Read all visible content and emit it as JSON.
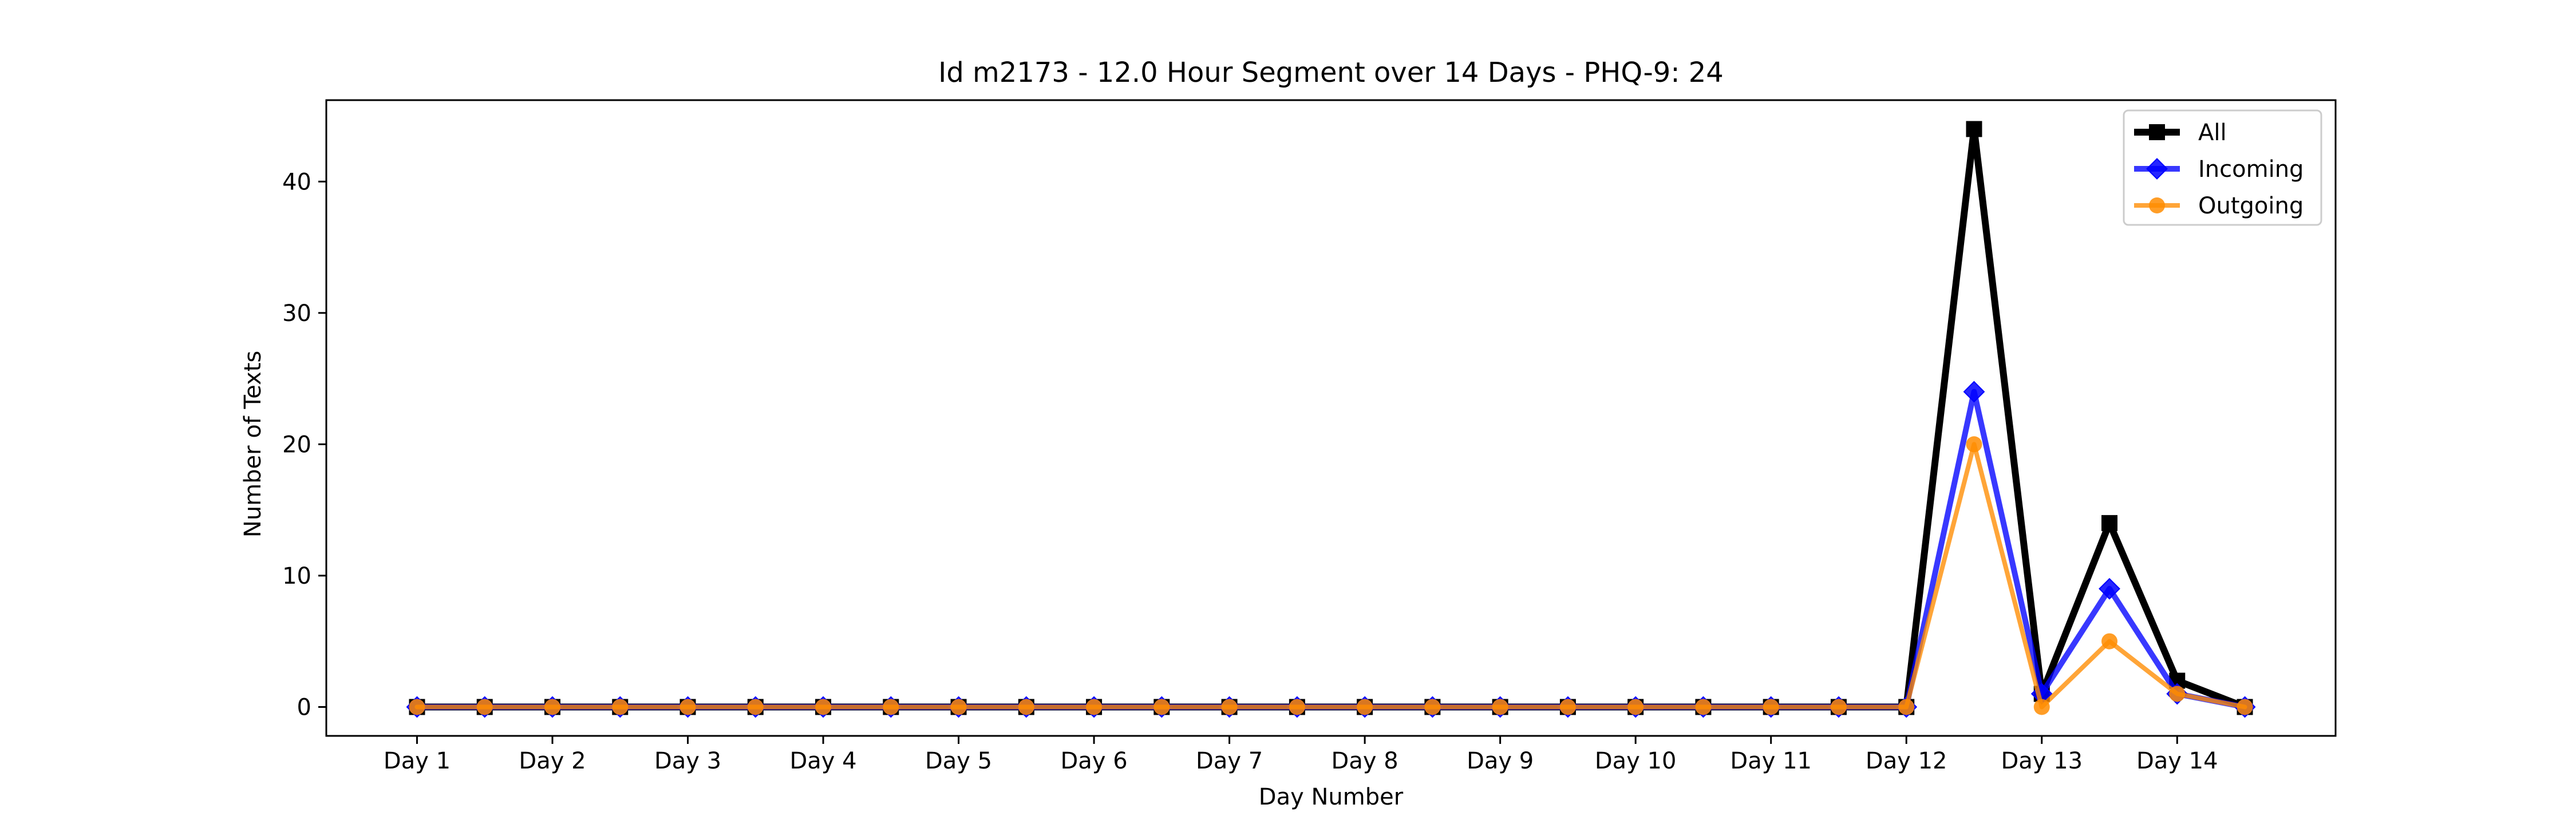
{
  "chart_data": {
    "type": "line",
    "title": "Id m2173 - 12.0 Hour Segment over 14 Days - PHQ-9: 24",
    "xlabel": "Day Number",
    "ylabel": "Number of Texts",
    "x": [
      1,
      1.5,
      2,
      2.5,
      3,
      3.5,
      4,
      4.5,
      5,
      5.5,
      6,
      6.5,
      7,
      7.5,
      8,
      8.5,
      9,
      9.5,
      10,
      10.5,
      11,
      11.5,
      12,
      12.5,
      13,
      13.5,
      14,
      14.5
    ],
    "xticks": [
      1,
      2,
      3,
      4,
      5,
      6,
      7,
      8,
      9,
      10,
      11,
      12,
      13,
      14
    ],
    "xtick_labels": [
      "Day 1",
      "Day 2",
      "Day 3",
      "Day 4",
      "Day 5",
      "Day 6",
      "Day 7",
      "Day 8",
      "Day 9",
      "Day 10",
      "Day 11",
      "Day 12",
      "Day 13",
      "Day 14"
    ],
    "yticks": [
      0,
      10,
      20,
      30,
      40
    ],
    "xlim": [
      0.33,
      15.17
    ],
    "ylim": [
      -2.2,
      46.2
    ],
    "grid": false,
    "legend_position": "top-right",
    "series": [
      {
        "name": "All",
        "color": "#000000",
        "marker": "square",
        "values": [
          0,
          0,
          0,
          0,
          0,
          0,
          0,
          0,
          0,
          0,
          0,
          0,
          0,
          0,
          0,
          0,
          0,
          0,
          0,
          0,
          0,
          0,
          0,
          44,
          1,
          14,
          2,
          0
        ]
      },
      {
        "name": "Incoming",
        "color": "#0000ff",
        "marker": "diamond",
        "values": [
          0,
          0,
          0,
          0,
          0,
          0,
          0,
          0,
          0,
          0,
          0,
          0,
          0,
          0,
          0,
          0,
          0,
          0,
          0,
          0,
          0,
          0,
          0,
          24,
          1,
          9,
          1,
          0
        ]
      },
      {
        "name": "Outgoing",
        "color": "#ff8c00",
        "marker": "circle",
        "values": [
          0,
          0,
          0,
          0,
          0,
          0,
          0,
          0,
          0,
          0,
          0,
          0,
          0,
          0,
          0,
          0,
          0,
          0,
          0,
          0,
          0,
          0,
          0,
          20,
          0,
          5,
          1,
          0
        ]
      }
    ]
  }
}
